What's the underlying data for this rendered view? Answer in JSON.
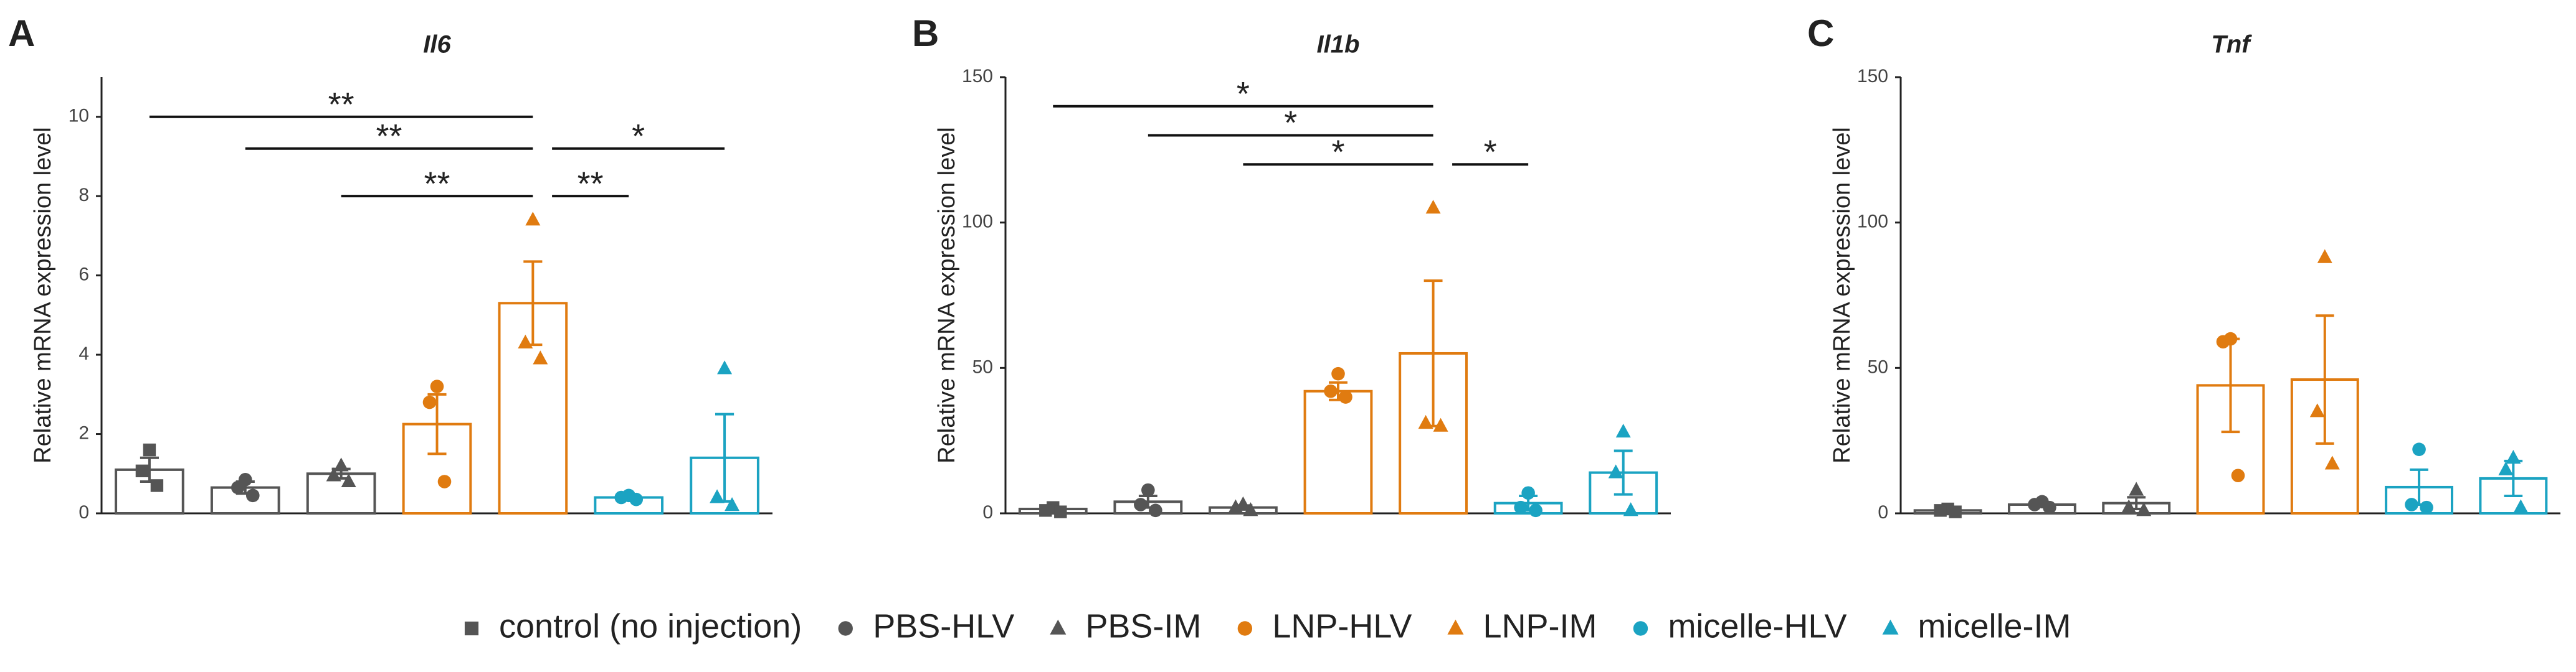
{
  "legend": [
    {
      "name": "control (no injection)",
      "color": "#555555",
      "marker": "square"
    },
    {
      "name": "PBS-HLV",
      "color": "#555555",
      "marker": "circle"
    },
    {
      "name": "PBS-IM",
      "color": "#555555",
      "marker": "triangle"
    },
    {
      "name": "LNP-HLV",
      "color": "#e07b10",
      "marker": "circle"
    },
    {
      "name": "LNP-IM",
      "color": "#e07b10",
      "marker": "triangle"
    },
    {
      "name": "micelle-HLV",
      "color": "#1ba3c2",
      "marker": "circle"
    },
    {
      "name": "micelle-IM",
      "color": "#1ba3c2",
      "marker": "triangle"
    }
  ],
  "chart_data": [
    {
      "type": "bar",
      "panel_label": "A",
      "title": "Il6",
      "y_label": "Relative mRNA expression level",
      "ylim": [
        0,
        11
      ],
      "yticks": [
        0,
        2,
        4,
        6,
        8,
        10
      ],
      "values": [
        1.1,
        0.65,
        1.0,
        2.25,
        5.3,
        0.4,
        1.4
      ],
      "errors": [
        0.3,
        0.15,
        0.12,
        0.75,
        1.05,
        0.05,
        1.1
      ],
      "points": [
        [
          1.6,
          1.07,
          0.7
        ],
        [
          0.85,
          0.65,
          0.45
        ],
        [
          1.2,
          0.95,
          0.8
        ],
        [
          3.2,
          2.8,
          0.8
        ],
        [
          7.4,
          4.3,
          3.9
        ],
        [
          0.45,
          0.4,
          0.35
        ],
        [
          3.65,
          0.4,
          0.2
        ]
      ],
      "significance": [
        {
          "from": 0,
          "to": 4,
          "y": 10.0,
          "label": "**"
        },
        {
          "from": 1,
          "to": 4,
          "y": 9.2,
          "label": "**"
        },
        {
          "from": 4,
          "to": 6,
          "y": 9.2,
          "label": "*"
        },
        {
          "from": 2,
          "to": 4,
          "y": 8.0,
          "label": "**"
        },
        {
          "from": 4,
          "to": 5,
          "y": 8.0,
          "label": "**"
        }
      ]
    },
    {
      "type": "bar",
      "panel_label": "B",
      "title": "Il1b",
      "y_label": "Relative mRNA expression level",
      "ylim": [
        0,
        150
      ],
      "yticks": [
        0,
        50,
        100,
        150
      ],
      "values": [
        1.5,
        4,
        2,
        42,
        55,
        3.5,
        14
      ],
      "errors": [
        0.5,
        2,
        0.7,
        3,
        25,
        2.5,
        7.5
      ],
      "points": [
        [
          2,
          1,
          0.5
        ],
        [
          8,
          3,
          1
        ],
        [
          3,
          2,
          1
        ],
        [
          48,
          42,
          40
        ],
        [
          105,
          31,
          30
        ],
        [
          7,
          2,
          1
        ],
        [
          28,
          14,
          1
        ]
      ],
      "significance": [
        {
          "from": 0,
          "to": 4,
          "y": 140,
          "label": "*"
        },
        {
          "from": 1,
          "to": 4,
          "y": 130,
          "label": "*"
        },
        {
          "from": 2,
          "to": 4,
          "y": 120,
          "label": "*"
        },
        {
          "from": 4,
          "to": 5,
          "y": 120,
          "label": "*"
        }
      ]
    },
    {
      "type": "bar",
      "panel_label": "C",
      "title": "Tnf",
      "y_label": "Relative mRNA expression level",
      "ylim": [
        0,
        150
      ],
      "yticks": [
        0,
        50,
        100,
        150
      ],
      "values": [
        1,
        3,
        3.5,
        44,
        46,
        9,
        12
      ],
      "errors": [
        0.4,
        0.7,
        2,
        16,
        22,
        6,
        6
      ],
      "points": [
        [
          1.5,
          1,
          0.5
        ],
        [
          4,
          3,
          2
        ],
        [
          8,
          2,
          1
        ],
        [
          60,
          59,
          13
        ],
        [
          88,
          35,
          17
        ],
        [
          22,
          3,
          2
        ],
        [
          19,
          15,
          2
        ]
      ],
      "significance": []
    }
  ]
}
